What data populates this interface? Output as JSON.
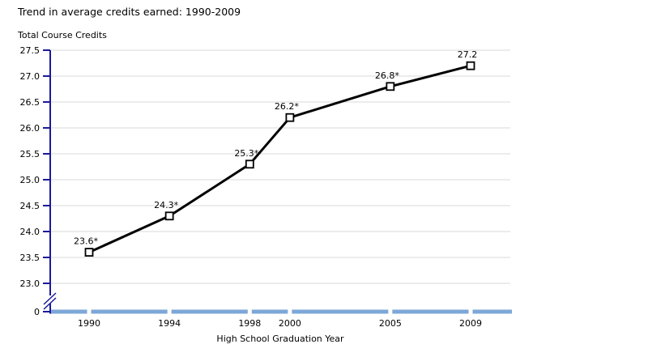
{
  "chart_data": {
    "type": "line",
    "title": "Trend in average credits earned: 1990-2009",
    "ylabel": "Total Course Credits",
    "xlabel": "High School Graduation Year",
    "x": [
      1990,
      1994,
      1998,
      2000,
      2005,
      2009
    ],
    "categories": [
      "1990",
      "1994",
      "1998",
      "2000",
      "2005",
      "2009"
    ],
    "series": [
      {
        "name": "Total course credits",
        "values": [
          23.6,
          24.3,
          25.3,
          26.2,
          26.8,
          27.2
        ]
      }
    ],
    "point_labels": [
      "23.6*",
      "24.3*",
      "25.3*",
      "26.2*",
      "26.8*",
      "27.2"
    ],
    "y_ticks": [
      23.0,
      23.5,
      24.0,
      24.5,
      25.0,
      25.5,
      26.0,
      26.5,
      27.0,
      27.5
    ],
    "y_tick_labels": [
      "23.0",
      "23.5",
      "24.0",
      "24.5",
      "25.0",
      "25.5",
      "26.0",
      "26.5",
      "27.0",
      "27.5"
    ],
    "baseline_tick_label": "0",
    "axis_break": true,
    "ylim_display": [
      23.0,
      27.5
    ],
    "grid": true,
    "legend": "none",
    "marker": "open-square",
    "colors": {
      "line": "#000000",
      "marker_fill": "#ffffff",
      "y_axis": "#1a1a9c",
      "x_axis": "#7da7d8",
      "gridline": "#d9d9d9",
      "text": "#000000",
      "background": "#ffffff"
    }
  }
}
